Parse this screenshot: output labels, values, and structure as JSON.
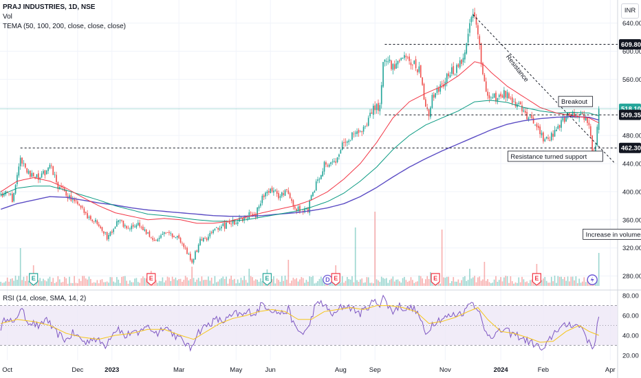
{
  "header": {
    "symbol": "PRAJ INDUSTRIES, 1D, NSE",
    "volume_label": "Vol",
    "tema_label": "TEMA (50, 100, 200, close, close, close)"
  },
  "rsi_label": "RSI (14, close, SMA, 14, 2)",
  "currency": "INR",
  "colors": {
    "up": "#26a69a",
    "down": "#ef5350",
    "tema50": "#f23645",
    "tema100": "#089981",
    "tema200": "#5b4cc4",
    "rsi": "#7e57c2",
    "rsi_ma": "#f5c518",
    "rsi_band": "#ede7f6",
    "earnings": "#26a69a",
    "earnings_red": "#f23645",
    "dividend": "#6b58d6"
  },
  "chart_data": {
    "type": "candlestick",
    "x_ticks": [
      {
        "label": "Oct",
        "bar": 4,
        "bold": false
      },
      {
        "label": "Dec",
        "bar": 47,
        "bold": false
      },
      {
        "label": "2023",
        "bar": 68,
        "bold": true
      },
      {
        "label": "Mar",
        "bar": 109,
        "bold": false
      },
      {
        "label": "May",
        "bar": 144,
        "bold": false
      },
      {
        "label": "Jun",
        "bar": 165,
        "bold": false
      },
      {
        "label": "Aug",
        "bar": 208,
        "bold": false
      },
      {
        "label": "Sep",
        "bar": 229,
        "bold": false
      },
      {
        "label": "Nov",
        "bar": 272,
        "bold": false
      },
      {
        "label": "2024",
        "bar": 306,
        "bold": true
      },
      {
        "label": "Feb",
        "bar": 332,
        "bold": false
      },
      {
        "label": "Apr",
        "bar": 373,
        "bold": false
      }
    ],
    "y_ticks": [
      280,
      320,
      360,
      400,
      440,
      480,
      520,
      560,
      600,
      640
    ],
    "ylim": [
      262,
      666
    ],
    "rsi_ticks": [
      20,
      40,
      60,
      80
    ],
    "rsi_lim": [
      15,
      85
    ],
    "price_tags": [
      {
        "value": 609.8,
        "label": "609.80",
        "color": "#131722"
      },
      {
        "value": 518.1,
        "label": "518.10",
        "color": "#26a69a"
      },
      {
        "value": 509.35,
        "label": "509.35",
        "color": "#131722"
      },
      {
        "value": 462.3,
        "label": "462.30",
        "color": "#131722"
      }
    ],
    "anchors": [
      [
        0,
        395
      ],
      [
        3,
        400
      ],
      [
        7,
        390
      ],
      [
        12,
        445
      ],
      [
        18,
        425
      ],
      [
        24,
        418
      ],
      [
        30,
        438
      ],
      [
        35,
        408
      ],
      [
        42,
        392
      ],
      [
        48,
        378
      ],
      [
        55,
        362
      ],
      [
        60,
        355
      ],
      [
        65,
        335
      ],
      [
        72,
        360
      ],
      [
        78,
        346
      ],
      [
        84,
        355
      ],
      [
        90,
        338
      ],
      [
        96,
        332
      ],
      [
        100,
        345
      ],
      [
        106,
        338
      ],
      [
        112,
        325
      ],
      [
        117,
        300
      ],
      [
        122,
        330
      ],
      [
        128,
        338
      ],
      [
        134,
        348
      ],
      [
        140,
        355
      ],
      [
        146,
        360
      ],
      [
        152,
        368
      ],
      [
        156,
        368
      ],
      [
        160,
        392
      ],
      [
        166,
        402
      ],
      [
        170,
        395
      ],
      [
        176,
        400
      ],
      [
        180,
        378
      ],
      [
        184,
        372
      ],
      [
        188,
        375
      ],
      [
        192,
        405
      ],
      [
        198,
        440
      ],
      [
        204,
        440
      ],
      [
        210,
        472
      ],
      [
        216,
        483
      ],
      [
        220,
        482
      ],
      [
        224,
        500
      ],
      [
        228,
        520
      ],
      [
        232,
        522
      ],
      [
        234,
        585
      ],
      [
        236,
        590
      ],
      [
        240,
        575
      ],
      [
        245,
        590
      ],
      [
        250,
        585
      ],
      [
        256,
        575
      ],
      [
        259,
        535
      ],
      [
        262,
        505
      ],
      [
        264,
        535
      ],
      [
        268,
        545
      ],
      [
        272,
        560
      ],
      [
        276,
        570
      ],
      [
        280,
        575
      ],
      [
        284,
        595
      ],
      [
        287,
        640
      ],
      [
        289,
        648
      ],
      [
        292,
        630
      ],
      [
        295,
        565
      ],
      [
        298,
        540
      ],
      [
        303,
        532
      ],
      [
        308,
        540
      ],
      [
        313,
        528
      ],
      [
        318,
        520
      ],
      [
        323,
        505
      ],
      [
        328,
        496
      ],
      [
        332,
        476
      ],
      [
        336,
        476
      ],
      [
        340,
        492
      ],
      [
        344,
        502
      ],
      [
        348,
        508
      ],
      [
        352,
        512
      ],
      [
        356,
        508
      ],
      [
        360,
        492
      ],
      [
        362,
        455
      ],
      [
        364,
        465
      ],
      [
        366,
        518.1
      ]
    ],
    "tema50_curve": [
      [
        0,
        400
      ],
      [
        10,
        415
      ],
      [
        20,
        420
      ],
      [
        30,
        415
      ],
      [
        40,
        405
      ],
      [
        50,
        392
      ],
      [
        60,
        380
      ],
      [
        70,
        370
      ],
      [
        80,
        365
      ],
      [
        90,
        360
      ],
      [
        100,
        362
      ],
      [
        110,
        360
      ],
      [
        120,
        355
      ],
      [
        130,
        355
      ],
      [
        140,
        358
      ],
      [
        150,
        364
      ],
      [
        160,
        370
      ],
      [
        170,
        375
      ],
      [
        180,
        380
      ],
      [
        190,
        388
      ],
      [
        200,
        400
      ],
      [
        210,
        418
      ],
      [
        220,
        440
      ],
      [
        230,
        470
      ],
      [
        240,
        505
      ],
      [
        250,
        528
      ],
      [
        260,
        540
      ],
      [
        270,
        550
      ],
      [
        280,
        565
      ],
      [
        290,
        585
      ],
      [
        295,
        582
      ],
      [
        300,
        570
      ],
      [
        310,
        550
      ],
      [
        320,
        535
      ],
      [
        330,
        520
      ],
      [
        340,
        512
      ],
      [
        350,
        508
      ],
      [
        360,
        505
      ],
      [
        366,
        498
      ]
    ],
    "tema100_curve": [
      [
        0,
        395
      ],
      [
        10,
        405
      ],
      [
        20,
        408
      ],
      [
        30,
        408
      ],
      [
        40,
        402
      ],
      [
        50,
        395
      ],
      [
        60,
        388
      ],
      [
        70,
        380
      ],
      [
        80,
        374
      ],
      [
        90,
        368
      ],
      [
        100,
        366
      ],
      [
        110,
        363
      ],
      [
        120,
        360
      ],
      [
        130,
        358
      ],
      [
        140,
        358
      ],
      [
        150,
        360
      ],
      [
        160,
        364
      ],
      [
        170,
        368
      ],
      [
        180,
        372
      ],
      [
        190,
        378
      ],
      [
        200,
        386
      ],
      [
        210,
        398
      ],
      [
        220,
        415
      ],
      [
        230,
        435
      ],
      [
        240,
        460
      ],
      [
        250,
        480
      ],
      [
        260,
        495
      ],
      [
        270,
        505
      ],
      [
        280,
        515
      ],
      [
        290,
        528
      ],
      [
        300,
        530
      ],
      [
        310,
        527
      ],
      [
        320,
        520
      ],
      [
        330,
        515
      ],
      [
        340,
        512
      ],
      [
        350,
        513
      ],
      [
        360,
        512
      ],
      [
        366,
        508
      ]
    ],
    "tema200_curve": [
      [
        0,
        375
      ],
      [
        10,
        383
      ],
      [
        20,
        388
      ],
      [
        30,
        393
      ],
      [
        40,
        392
      ],
      [
        50,
        388
      ],
      [
        60,
        384
      ],
      [
        70,
        381
      ],
      [
        80,
        377
      ],
      [
        90,
        374
      ],
      [
        100,
        372
      ],
      [
        110,
        370
      ],
      [
        120,
        368
      ],
      [
        130,
        366
      ],
      [
        140,
        365
      ],
      [
        150,
        365
      ],
      [
        160,
        366
      ],
      [
        170,
        368
      ],
      [
        180,
        370
      ],
      [
        190,
        373
      ],
      [
        200,
        377
      ],
      [
        210,
        383
      ],
      [
        220,
        393
      ],
      [
        230,
        406
      ],
      [
        240,
        421
      ],
      [
        250,
        435
      ],
      [
        260,
        447
      ],
      [
        270,
        458
      ],
      [
        280,
        468
      ],
      [
        290,
        478
      ],
      [
        300,
        488
      ],
      [
        310,
        496
      ],
      [
        320,
        501
      ],
      [
        330,
        504
      ],
      [
        340,
        506
      ],
      [
        350,
        507
      ],
      [
        360,
        506
      ],
      [
        366,
        502
      ]
    ],
    "rsi_anchors": [
      [
        0,
        48
      ],
      [
        4,
        60
      ],
      [
        8,
        50
      ],
      [
        12,
        68
      ],
      [
        16,
        55
      ],
      [
        20,
        52
      ],
      [
        24,
        48
      ],
      [
        28,
        58
      ],
      [
        32,
        45
      ],
      [
        36,
        40
      ],
      [
        40,
        35
      ],
      [
        44,
        42
      ],
      [
        48,
        38
      ],
      [
        52,
        32
      ],
      [
        56,
        38
      ],
      [
        60,
        34
      ],
      [
        64,
        30
      ],
      [
        68,
        42
      ],
      [
        72,
        48
      ],
      [
        76,
        38
      ],
      [
        80,
        44
      ],
      [
        84,
        40
      ],
      [
        88,
        50
      ],
      [
        92,
        46
      ],
      [
        96,
        42
      ],
      [
        100,
        50
      ],
      [
        104,
        44
      ],
      [
        108,
        38
      ],
      [
        112,
        34
      ],
      [
        116,
        26
      ],
      [
        120,
        42
      ],
      [
        124,
        48
      ],
      [
        128,
        52
      ],
      [
        132,
        56
      ],
      [
        136,
        54
      ],
      [
        140,
        58
      ],
      [
        144,
        62
      ],
      [
        148,
        60
      ],
      [
        152,
        64
      ],
      [
        156,
        62
      ],
      [
        160,
        72
      ],
      [
        164,
        68
      ],
      [
        168,
        64
      ],
      [
        172,
        62
      ],
      [
        176,
        66
      ],
      [
        180,
        48
      ],
      [
        184,
        42
      ],
      [
        188,
        46
      ],
      [
        192,
        68
      ],
      [
        196,
        74
      ],
      [
        200,
        66
      ],
      [
        204,
        60
      ],
      [
        208,
        68
      ],
      [
        212,
        70
      ],
      [
        216,
        66
      ],
      [
        220,
        62
      ],
      [
        224,
        68
      ],
      [
        228,
        74
      ],
      [
        232,
        72
      ],
      [
        234,
        80
      ],
      [
        236,
        72
      ],
      [
        240,
        64
      ],
      [
        244,
        70
      ],
      [
        248,
        66
      ],
      [
        252,
        68
      ],
      [
        256,
        60
      ],
      [
        260,
        40
      ],
      [
        264,
        52
      ],
      [
        268,
        56
      ],
      [
        272,
        58
      ],
      [
        276,
        60
      ],
      [
        280,
        62
      ],
      [
        284,
        64
      ],
      [
        287,
        75
      ],
      [
        289,
        72
      ],
      [
        292,
        68
      ],
      [
        296,
        44
      ],
      [
        300,
        40
      ],
      [
        304,
        42
      ],
      [
        308,
        46
      ],
      [
        312,
        42
      ],
      [
        316,
        40
      ],
      [
        320,
        36
      ],
      [
        324,
        33
      ],
      [
        328,
        30
      ],
      [
        332,
        24
      ],
      [
        336,
        36
      ],
      [
        340,
        46
      ],
      [
        344,
        48
      ],
      [
        348,
        52
      ],
      [
        352,
        50
      ],
      [
        356,
        48
      ],
      [
        360,
        32
      ],
      [
        363,
        28
      ],
      [
        366,
        60
      ]
    ],
    "rsi_ma_curve": [
      [
        0,
        52
      ],
      [
        10,
        56
      ],
      [
        20,
        54
      ],
      [
        30,
        50
      ],
      [
        40,
        42
      ],
      [
        50,
        38
      ],
      [
        60,
        36
      ],
      [
        70,
        40
      ],
      [
        80,
        42
      ],
      [
        90,
        46
      ],
      [
        100,
        46
      ],
      [
        110,
        40
      ],
      [
        118,
        36
      ],
      [
        126,
        44
      ],
      [
        134,
        52
      ],
      [
        142,
        57
      ],
      [
        150,
        60
      ],
      [
        158,
        64
      ],
      [
        166,
        66
      ],
      [
        174,
        64
      ],
      [
        182,
        56
      ],
      [
        190,
        56
      ],
      [
        198,
        64
      ],
      [
        206,
        66
      ],
      [
        214,
        68
      ],
      [
        222,
        66
      ],
      [
        230,
        70
      ],
      [
        238,
        70
      ],
      [
        246,
        68
      ],
      [
        254,
        64
      ],
      [
        262,
        52
      ],
      [
        270,
        54
      ],
      [
        278,
        58
      ],
      [
        286,
        64
      ],
      [
        292,
        68
      ],
      [
        298,
        56
      ],
      [
        306,
        44
      ],
      [
        314,
        42
      ],
      [
        322,
        38
      ],
      [
        330,
        33
      ],
      [
        338,
        34
      ],
      [
        346,
        44
      ],
      [
        354,
        50
      ],
      [
        360,
        44
      ],
      [
        366,
        40
      ]
    ],
    "horizontal_lines": [
      {
        "value": 609.8,
        "x_from_bar": 235,
        "style": "dashed"
      },
      {
        "value": 509.35,
        "x_from_bar": 235,
        "style": "dashed"
      },
      {
        "value": 462.3,
        "x_from_bar": 12,
        "style": "dashed"
      }
    ],
    "resistance_line": {
      "from": [
        289,
        652
      ],
      "to": [
        376,
        440
      ]
    },
    "annotations": [
      {
        "text": "Resistance",
        "bar": 309,
        "value": 592,
        "rotate": 52,
        "color": "#f23645"
      },
      {
        "text": "Breakout",
        "bar": 343,
        "value": 525,
        "boxed": true
      },
      {
        "text": "Resistance turned support",
        "bar": 312,
        "value": 447,
        "boxed": true
      },
      {
        "text": "Increase in volumes",
        "bar": 358,
        "value": 336,
        "boxed": true
      }
    ],
    "events": [
      {
        "type": "E",
        "bar": 20,
        "color": "#26a69a"
      },
      {
        "type": "E",
        "bar": 92,
        "color": "#f23645"
      },
      {
        "type": "E",
        "bar": 163,
        "color": "#26a69a"
      },
      {
        "type": "D",
        "bar": 200,
        "color": "#6b58d6"
      },
      {
        "type": "E",
        "bar": 205,
        "color": "#f23645"
      },
      {
        "type": "E",
        "bar": 266,
        "color": "#f23645"
      },
      {
        "type": "E",
        "bar": 328,
        "color": "#f23645"
      },
      {
        "type": "S",
        "bar": 362,
        "color": "#6b58d6"
      }
    ]
  }
}
